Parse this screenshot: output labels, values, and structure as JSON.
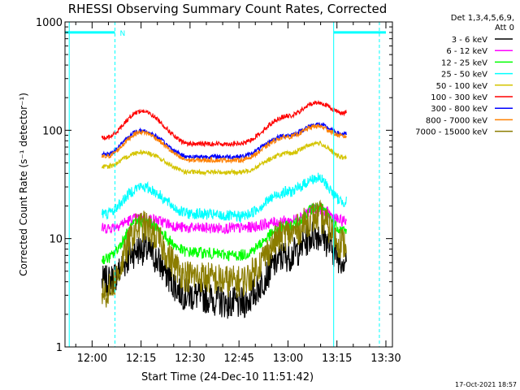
{
  "chart_data": {
    "type": "line",
    "title": "RHESSI Observing Summary Count Rates, Corrected",
    "xlabel": "Start Time (24-Dec-10 11:51:42)",
    "ylabel": "Corrected Count Rate (s⁻¹ detector⁻¹)",
    "yscale": "log",
    "ylim": [
      1,
      1000
    ],
    "xlim": [
      "11:51:42",
      "13:32"
    ],
    "x_ticks": [
      "12:00",
      "12:15",
      "12:30",
      "12:45",
      "13:00",
      "13:15",
      "13:30"
    ],
    "y_ticks": [
      "1",
      "10",
      "100",
      "1000"
    ],
    "legend_header": [
      "Det 1,3,4,5,6,9,",
      "Att 0"
    ],
    "legend_placement": "right",
    "timestamp": "17-Oct-2021 18:57",
    "marker_n": "N",
    "time_points": [
      "12:04",
      "12:15",
      "12:30",
      "12:45",
      "13:00",
      "13:09",
      "13:17"
    ],
    "series": [
      {
        "name": "3 - 6 keV",
        "color": "#000000",
        "values": [
          4.0,
          8.0,
          3.0,
          2.5,
          7.0,
          11.0,
          6.5
        ]
      },
      {
        "name": "6 - 12 keV",
        "color": "#ff00ff",
        "values": [
          12.5,
          15.5,
          12.5,
          12.5,
          14.5,
          19.0,
          14.5
        ]
      },
      {
        "name": "12 - 25 keV",
        "color": "#00ff00",
        "values": [
          6.5,
          14.5,
          7.5,
          7.0,
          13.0,
          19.5,
          12.0
        ]
      },
      {
        "name": "25 - 50 keV",
        "color": "#00ffff",
        "values": [
          17.0,
          30.0,
          17.0,
          16.0,
          27.0,
          36.0,
          22.0
        ]
      },
      {
        "name": "50 - 100 keV",
        "color": "#d4c400",
        "values": [
          46.0,
          63.0,
          41.0,
          41.0,
          61.0,
          76.0,
          56.0
        ]
      },
      {
        "name": "100 - 300 keV",
        "color": "#ff0000",
        "values": [
          85.0,
          150.0,
          75.0,
          75.0,
          135.0,
          180.0,
          145.0
        ]
      },
      {
        "name": "300 - 800 keV",
        "color": "#0000ff",
        "values": [
          60.0,
          99.0,
          57.0,
          57.0,
          90.0,
          113.0,
          92.0
        ]
      },
      {
        "name": "800 - 7000 keV",
        "color": "#ff8000",
        "values": [
          57.0,
          96.0,
          53.0,
          53.0,
          87.0,
          109.0,
          88.0
        ]
      },
      {
        "name": "7000 - 15000 keV",
        "color": "#8b7d00",
        "values": [
          3.2,
          13.0,
          4.5,
          4.0,
          11.0,
          16.0,
          9.0
        ]
      }
    ],
    "data_window": [
      "12:03",
      "13:18"
    ],
    "extra_lines": [
      {
        "color": "#00ffff",
        "style": "solid",
        "time": "11:53"
      },
      {
        "color": "#00ffff",
        "style": "dashed",
        "time": "12:07"
      },
      {
        "color": "#00ffff",
        "style": "solid",
        "time": "13:14"
      },
      {
        "color": "#00ffff",
        "style": "dashed",
        "time": "13:28"
      }
    ],
    "night_bars": [
      {
        "color": "#00ffff",
        "from": "11:51:42",
        "to": "12:07",
        "value": 800
      },
      {
        "color": "#00ffff",
        "from": "13:14",
        "to": "13:30",
        "value": 800
      }
    ]
  }
}
